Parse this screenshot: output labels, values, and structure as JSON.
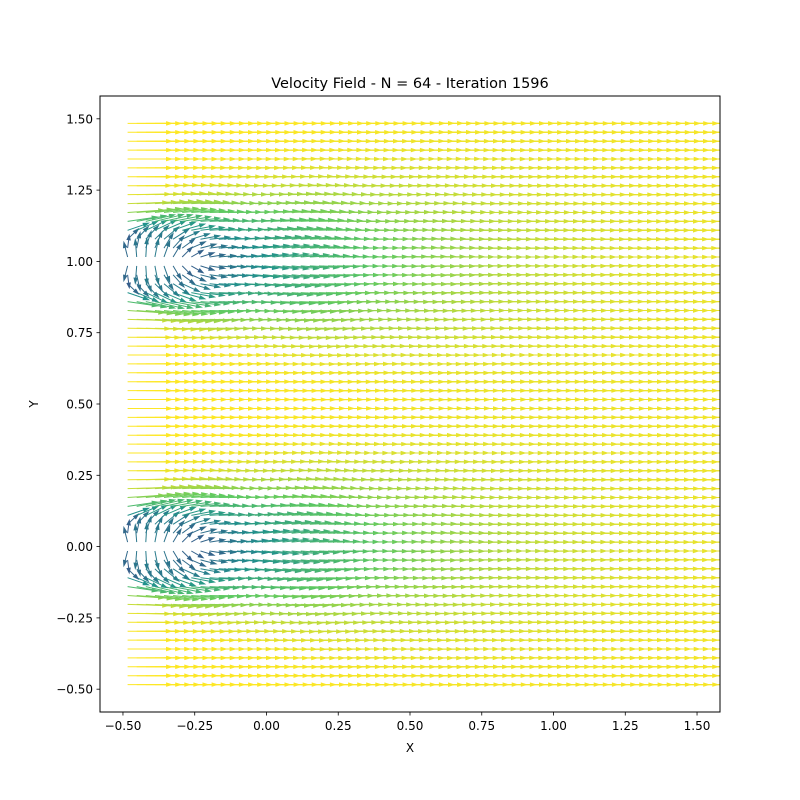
{
  "chart_data": {
    "type": "quiver",
    "title": "Velocity Field - N = 64 - Iteration 1596",
    "xlabel": "X",
    "ylabel": "Y",
    "xlim": [
      -0.58,
      1.58
    ],
    "ylim": [
      -0.58,
      1.58
    ],
    "xticks": [
      -0.5,
      -0.25,
      0.0,
      0.25,
      0.5,
      0.75,
      1.0,
      1.25,
      1.5
    ],
    "xtick_labels": [
      "−0.50",
      "−0.25",
      "0.00",
      "0.25",
      "0.50",
      "0.75",
      "1.00",
      "1.25",
      "1.50"
    ],
    "yticks": [
      -0.5,
      -0.25,
      0.0,
      0.25,
      0.5,
      0.75,
      1.0,
      1.25,
      1.5
    ],
    "ytick_labels": [
      "−0.50",
      "−0.25",
      "0.00",
      "0.25",
      "0.50",
      "0.75",
      "1.00",
      "1.25",
      "1.50"
    ],
    "grid": false,
    "colormap": [
      "#440154",
      "#3b528b",
      "#21918c",
      "#5ec962",
      "#fde725"
    ],
    "grid_x": [
      -0.484,
      1.516
    ],
    "grid_y": [
      -0.484,
      1.484
    ],
    "grid_n": 64,
    "wakes": [
      {
        "x": -0.48,
        "y": 0.0,
        "length": 1.1
      },
      {
        "x": -0.48,
        "y": 1.0,
        "length": 1.1
      }
    ],
    "freestream_direction": "+x"
  }
}
